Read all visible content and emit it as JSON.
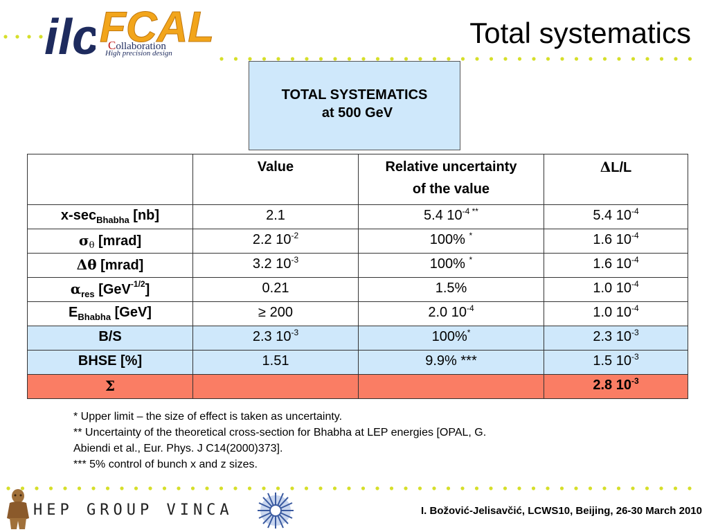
{
  "header": {
    "logo_ilc": "ilc",
    "logo_fcal": "FCAL",
    "logo_collab_cap": "C",
    "logo_collab_rest": "ollaboration",
    "logo_collab_sub": "High precision design",
    "title": "Total systematics"
  },
  "box": {
    "line1": "TOTAL SYSTEMATICS",
    "line2": "at 500 GeV"
  },
  "table": {
    "headers": {
      "value": "Value",
      "rel1": "Relative uncertainty",
      "rel2": "of  the value",
      "dl_sym": "Δ",
      "dl_text": "L/L"
    },
    "rows": [
      {
        "name_main": "x-sec",
        "name_sub": "Bhabha",
        "name_sup": "",
        "name_tail": " [nb]",
        "value_main": "2.1",
        "value_sup": "",
        "rel_main": "5.4 10",
        "rel_sup": "-4 **",
        "dl_main": "5.4 10",
        "dl_sup": "-4"
      },
      {
        "name_main": "σ",
        "name_sub": "θ",
        "name_sup": "",
        "name_tail": " [mrad]",
        "value_main": "2.2 10",
        "value_sup": "-2",
        "rel_main": "100% ",
        "rel_sup": "*",
        "dl_main": "1.6 10",
        "dl_sup": "-4"
      },
      {
        "name_main": "Δθ",
        "name_sub": "",
        "name_sup": "",
        "name_tail": " [mrad]",
        "value_main": "3.2 10",
        "value_sup": "-3",
        "rel_main": "100% ",
        "rel_sup": "*",
        "dl_main": "1.6 10",
        "dl_sup": "-4"
      },
      {
        "name_main": "α",
        "name_sub": "res",
        "name_sup": "-1/2",
        "name_tail": " [GeV",
        "name_end": "]",
        "value_main": "0.21",
        "value_sup": "",
        "rel_main": "1.5%",
        "rel_sup": "",
        "dl_main": "1.0 10",
        "dl_sup": "-4"
      },
      {
        "name_main": "E",
        "name_sub": "Bhabha",
        "name_sup": "",
        "name_tail": " [GeV]",
        "value_main": "≥ 200",
        "value_sup": "",
        "rel_main": "2.0 10",
        "rel_sup": "-4",
        "dl_main": "1.0 10",
        "dl_sup": "-4"
      },
      {
        "name_main": "B/S",
        "name_sub": "",
        "name_sup": "",
        "name_tail": "",
        "value_main": "2.3 10",
        "value_sup": "-3",
        "rel_main": "100%",
        "rel_sup": "*",
        "dl_main": "2.3 10",
        "dl_sup": "-3"
      },
      {
        "name_main": "BHSE [%]",
        "name_sub": "",
        "name_sup": "",
        "name_tail": "",
        "value_main": "1.51",
        "value_sup": "",
        "rel_main": "9.9% ***",
        "rel_sup": "",
        "dl_main": "1.5 10",
        "dl_sup": "-3"
      }
    ],
    "total": {
      "symbol": "Σ",
      "dl_main": "2.8 10",
      "dl_sup": "-3"
    }
  },
  "notes": [
    "*  Upper limit – the size of effect is taken as uncertainty.",
    "** Uncertainty of the theoretical cross-section for Bhabha at LEP energies [OPAL, G.",
    "Abiendi et al., Eur. Phys. J C14(2000)373].",
    "*** 5% control of bunch x and z sizes."
  ],
  "footer": {
    "hep_logo": "HEP GROUP VINCA",
    "text": "I. Božović-Jelisavčić, LCWS10, Beijing, 26-30 March 2010"
  },
  "colors": {
    "box_bg": "#cfe8fb",
    "highlight_rows": "#cfe8fb",
    "total_row": "#fa7d64",
    "dots": "#d6df2a"
  }
}
